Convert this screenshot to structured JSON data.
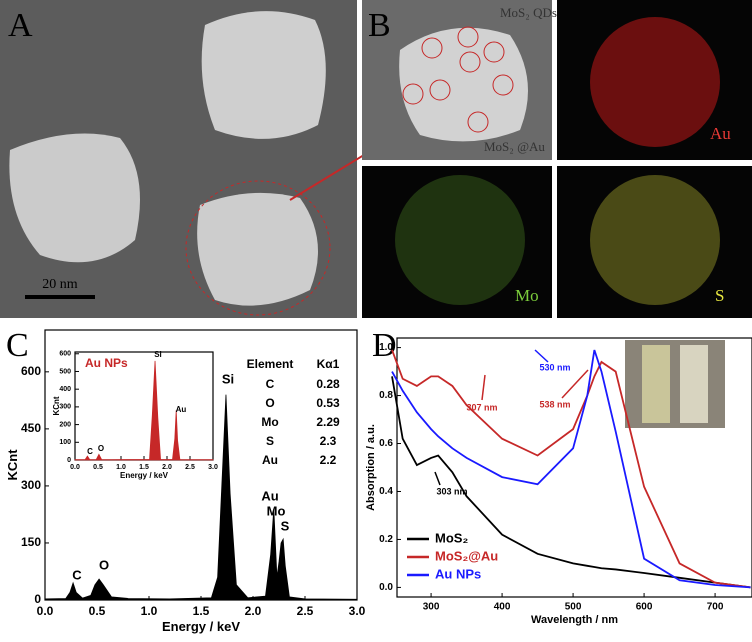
{
  "panel_labels": [
    "A",
    "B",
    "C",
    "D"
  ],
  "micrograph": {
    "scale_bar": "20 nm"
  },
  "mapping": {
    "annotations": [
      "MoS₂ QDs",
      "MoS₂ @Au"
    ],
    "elements": [
      "Au",
      "Mo",
      "S"
    ]
  },
  "chart_data": [
    {
      "type": "area",
      "x_label": "Energy / keV",
      "y_label": "KCnt",
      "color": "#000000",
      "x": [
        0,
        0.2,
        0.24,
        0.27,
        0.3,
        0.36,
        0.44,
        0.48,
        0.52,
        0.56,
        0.64,
        0.8,
        1.2,
        1.6,
        1.66,
        1.7,
        1.74,
        1.78,
        1.84,
        1.95,
        2.12,
        2.17,
        2.2,
        2.23,
        2.25,
        2.27,
        2.29,
        2.31,
        2.35,
        2.5,
        3.0
      ],
      "values": [
        3,
        4,
        20,
        45,
        20,
        5,
        12,
        40,
        55,
        40,
        8,
        4,
        3,
        6,
        60,
        300,
        540,
        280,
        40,
        6,
        10,
        120,
        240,
        60,
        100,
        150,
        160,
        90,
        8,
        3,
        2
      ],
      "xlim": [
        0,
        3.0
      ],
      "ylim": [
        0,
        710
      ],
      "xticks": [
        {
          "value": 0,
          "label": "0.0"
        },
        0.5,
        {
          "value": 1,
          "label": "1.0"
        },
        1.5,
        {
          "value": 2,
          "label": "2.0"
        },
        2.5,
        {
          "value": 3,
          "label": "3.0"
        }
      ],
      "yticks": [
        0,
        150,
        300,
        450,
        600
      ],
      "peak_labels": [
        "C",
        "O",
        "Si",
        "Au",
        "Mo",
        "S"
      ],
      "table": {
        "header": [
          "Element",
          "Kα1"
        ],
        "rows": [
          [
            "C",
            0.28
          ],
          [
            "O",
            0.53
          ],
          [
            "Mo",
            2.29
          ],
          [
            "S",
            2.3
          ],
          [
            "Au",
            2.2
          ]
        ]
      },
      "inset": {
        "type": "area",
        "title": "Au NPs",
        "x_label": "Energy / keV",
        "y_label": "KCnt",
        "color": "#c62828",
        "x": [
          0,
          0.22,
          0.27,
          0.32,
          0.46,
          0.52,
          0.58,
          0.8,
          1.62,
          1.68,
          1.74,
          1.8,
          1.86,
          2.12,
          2.17,
          2.2,
          2.23,
          2.28,
          3.0
        ],
        "values": [
          2,
          2,
          22,
          2,
          2,
          32,
          2,
          2,
          3,
          250,
          560,
          240,
          3,
          3,
          120,
          280,
          110,
          2,
          2
        ],
        "xlim": [
          0,
          3.0
        ],
        "ylim": [
          0,
          610
        ],
        "xticks": [
          {
            "value": 0,
            "label": "0.0"
          },
          0.5,
          {
            "value": 1,
            "label": "1.0"
          },
          1.5,
          {
            "value": 2,
            "label": "2.0"
          },
          2.5,
          {
            "value": 3,
            "label": "3.0"
          }
        ],
        "yticks": [
          0,
          100,
          200,
          300,
          400,
          500,
          600
        ],
        "peak_labels": [
          "C",
          "O",
          "Si",
          "Au"
        ]
      }
    },
    {
      "type": "line",
      "x_label": "Wavelength / nm",
      "y_label": "Absorption / a.u.",
      "x": [
        245,
        260,
        280,
        300,
        310,
        330,
        350,
        400,
        450,
        500,
        520,
        530,
        540,
        560,
        600,
        650,
        700,
        750
      ],
      "series": [
        {
          "name": "MoS₂",
          "color": "#000000",
          "values": [
            0.88,
            0.62,
            0.51,
            0.54,
            0.55,
            0.48,
            0.38,
            0.22,
            0.14,
            0.1,
            0.09,
            0.085,
            0.08,
            0.075,
            0.06,
            0.04,
            0.02,
            0.0
          ]
        },
        {
          "name": "MoS₂@Au",
          "color": "#c62828",
          "values": [
            0.99,
            0.87,
            0.84,
            0.88,
            0.88,
            0.84,
            0.76,
            0.62,
            0.55,
            0.66,
            0.8,
            0.88,
            0.94,
            0.9,
            0.42,
            0.1,
            0.02,
            0.0
          ]
        },
        {
          "name": "Au NPs",
          "color": "#1a1aff",
          "values": [
            0.9,
            0.82,
            0.73,
            0.66,
            0.63,
            0.58,
            0.54,
            0.46,
            0.43,
            0.58,
            0.8,
            0.99,
            0.9,
            0.65,
            0.12,
            0.03,
            0.01,
            0.0
          ]
        }
      ],
      "xlim": [
        252,
        752
      ],
      "ylim": [
        -0.04,
        1.04
      ],
      "xticks": [
        300,
        400,
        500,
        600,
        700
      ],
      "yticks": [
        {
          "value": 0,
          "label": "0.0"
        },
        0.2,
        0.4,
        0.6,
        0.8,
        {
          "value": 1,
          "label": "1.0"
        }
      ],
      "annotations": [
        "303 nm",
        "307 nm",
        "530 nm",
        "538 nm"
      ],
      "legend": "lower left"
    }
  ]
}
